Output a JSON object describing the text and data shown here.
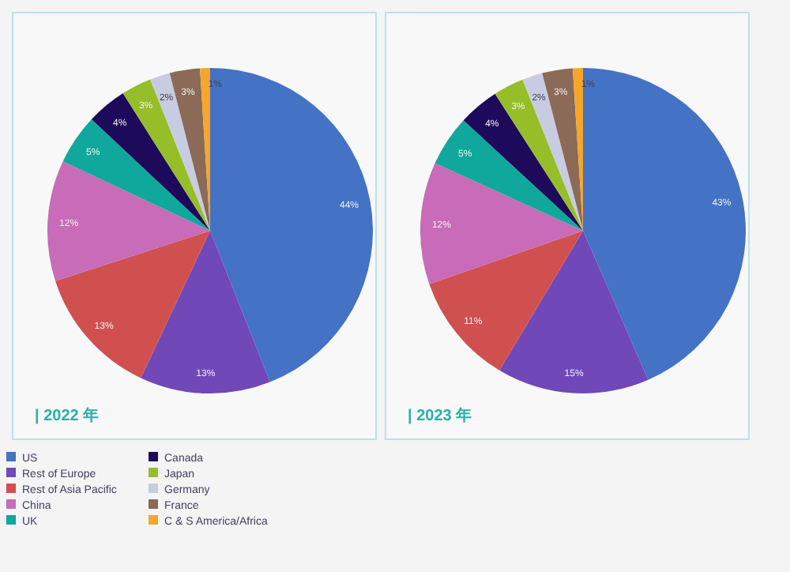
{
  "chart_data": [
    {
      "type": "pie",
      "title": "| 2022 年",
      "categories": [
        "US",
        "Rest of Europe",
        "Rest of Asia Pacific",
        "China",
        "UK",
        "Canada",
        "Japan",
        "Germany",
        "France",
        "C & S America/Africa"
      ],
      "values": [
        44,
        13,
        13,
        12,
        5,
        4,
        3,
        2,
        3,
        1
      ],
      "value_labels": [
        "44%",
        "13%",
        "13%",
        "12%",
        "5%",
        "4%",
        "3%",
        "2%",
        "3%",
        "1%"
      ],
      "colors": [
        "#4472c4",
        "#7048b8",
        "#d05050",
        "#c86bb8",
        "#10a89c",
        "#1e0a5a",
        "#96be28",
        "#c8cce0",
        "#8c6a58",
        "#f4a72a"
      ],
      "legend": "bottom"
    },
    {
      "type": "pie",
      "title": "| 2023 年",
      "categories": [
        null,
        null,
        null,
        null,
        null,
        null,
        null,
        null,
        null,
        null
      ],
      "values": [
        43,
        15,
        11,
        12,
        5,
        4,
        3,
        2,
        3,
        1
      ],
      "value_labels": [
        "43%",
        "15%",
        "11%",
        "12%",
        "5%",
        "4%",
        "3%",
        "2%",
        "3%",
        "1%"
      ],
      "colors": [
        "#4472c4",
        "#7048b8",
        "#d05050",
        "#c86bb8",
        "#10a89c",
        "#1e0a5a",
        "#96be28",
        "#c8cce0",
        "#8c6a58",
        "#f4a72a"
      ]
    }
  ]
}
